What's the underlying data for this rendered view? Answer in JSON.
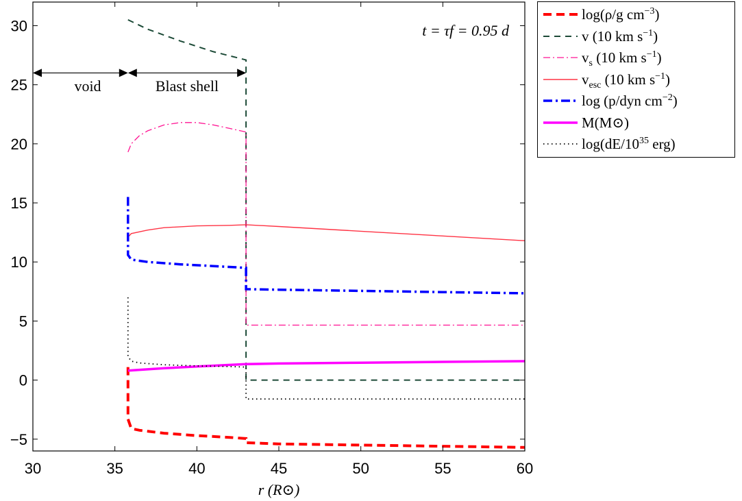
{
  "chart_data": {
    "type": "line",
    "xlabel": "r (R⊙)",
    "xlim": [
      30,
      60
    ],
    "ylim": [
      -6,
      32
    ],
    "xticks": [
      "30",
      "35",
      "40",
      "45",
      "50",
      "55",
      "60"
    ],
    "yticks": [
      "−5",
      "0",
      "5",
      "10",
      "15",
      "20",
      "25",
      "30"
    ],
    "grid": false,
    "legend_position": "outside-top-right",
    "annotations": {
      "time": "t = τf = 0.95 d",
      "void": "void",
      "blast_shell": "Blast shell",
      "void_arrow": {
        "from": [
          30,
          26
        ],
        "to": [
          35.8,
          26
        ]
      },
      "shell_arrow": {
        "from": [
          35.8,
          26
        ],
        "to": [
          43,
          26
        ]
      }
    },
    "series": [
      {
        "name": "log(ρ/g cm−3)",
        "color": "#ff0000",
        "style": "dashed-thick",
        "x": [
          35.8,
          35.8,
          36,
          36.5,
          38,
          40,
          42,
          43,
          43,
          45,
          50,
          55,
          60
        ],
        "y": [
          1.1,
          -3.3,
          -4.1,
          -4.25,
          -4.5,
          -4.7,
          -4.85,
          -4.95,
          -5.3,
          -5.4,
          -5.5,
          -5.6,
          -5.7
        ]
      },
      {
        "name": "v (10 km s−1)",
        "color": "#1c4a37",
        "style": "dashed",
        "x": [
          35.8,
          37,
          39,
          41,
          43,
          43,
          45,
          50,
          55,
          60
        ],
        "y": [
          30.5,
          29.7,
          28.7,
          27.8,
          27.1,
          0,
          0,
          0,
          0,
          0
        ]
      },
      {
        "name": "vs (10 km s−1)",
        "color": "#ff1493",
        "style": "dashdot",
        "x": [
          35.8,
          36,
          36.5,
          37,
          38,
          39,
          40,
          41,
          42,
          43,
          43,
          45,
          50,
          55,
          60
        ],
        "y": [
          19.3,
          20.0,
          20.7,
          21.1,
          21.6,
          21.8,
          21.8,
          21.6,
          21.3,
          21.0,
          4.65,
          4.65,
          4.65,
          4.65,
          4.65
        ]
      },
      {
        "name": "vesc (10 km s−1)",
        "color": "#ff3344",
        "style": "solid",
        "x": [
          35.8,
          36,
          37,
          38,
          40,
          42,
          43,
          45,
          50,
          55,
          60
        ],
        "y": [
          12.1,
          12.4,
          12.7,
          12.9,
          13.05,
          13.1,
          13.15,
          13.0,
          12.6,
          12.2,
          11.8
        ]
      },
      {
        "name": "log (p/dyn cm−2)",
        "color": "#0000ff",
        "style": "dashdot-thick",
        "x": [
          35.8,
          35.8,
          36,
          37,
          39,
          41,
          43,
          43,
          45,
          50,
          55,
          60
        ],
        "y": [
          15.5,
          10.6,
          10.2,
          10.0,
          9.8,
          9.65,
          9.5,
          7.7,
          7.65,
          7.55,
          7.45,
          7.35
        ]
      },
      {
        "name": "M(M⊙)",
        "color": "#ff00ff",
        "style": "solid-thick",
        "x": [
          35.8,
          38,
          40,
          43,
          45,
          50,
          55,
          60
        ],
        "y": [
          0.8,
          1.0,
          1.15,
          1.35,
          1.4,
          1.47,
          1.54,
          1.6
        ]
      },
      {
        "name": "log(dE/10^35 erg)",
        "color": "#000000",
        "style": "dotted",
        "x": [
          35.8,
          35.8,
          36,
          36.5,
          38,
          40,
          42,
          43,
          43,
          45,
          50,
          55,
          60
        ],
        "y": [
          7.0,
          2.0,
          1.6,
          1.45,
          1.3,
          1.2,
          1.15,
          1.1,
          -1.6,
          -1.6,
          -1.6,
          -1.6,
          -1.6
        ]
      }
    ]
  },
  "legend": [
    {
      "base": "log(ρ/g cm",
      "sup": "−3",
      "after": ")"
    },
    {
      "base": "v (10 km s",
      "sup": "−1",
      "after": ")"
    },
    {
      "base": "v",
      "sub": "s",
      "mid": " (10 km s",
      "sup": "−1",
      "after": ")"
    },
    {
      "base": "v",
      "sub": "esc",
      "mid": " (10 km s",
      "sup": "−1",
      "after": ")"
    },
    {
      "base": "log (p/dyn cm",
      "sup": "−2",
      "after": ")"
    },
    {
      "base": "M(M",
      "mid": "⊙",
      "after": ")"
    },
    {
      "base": "log(dE/10",
      "sup": "35",
      "after": " erg)"
    }
  ]
}
